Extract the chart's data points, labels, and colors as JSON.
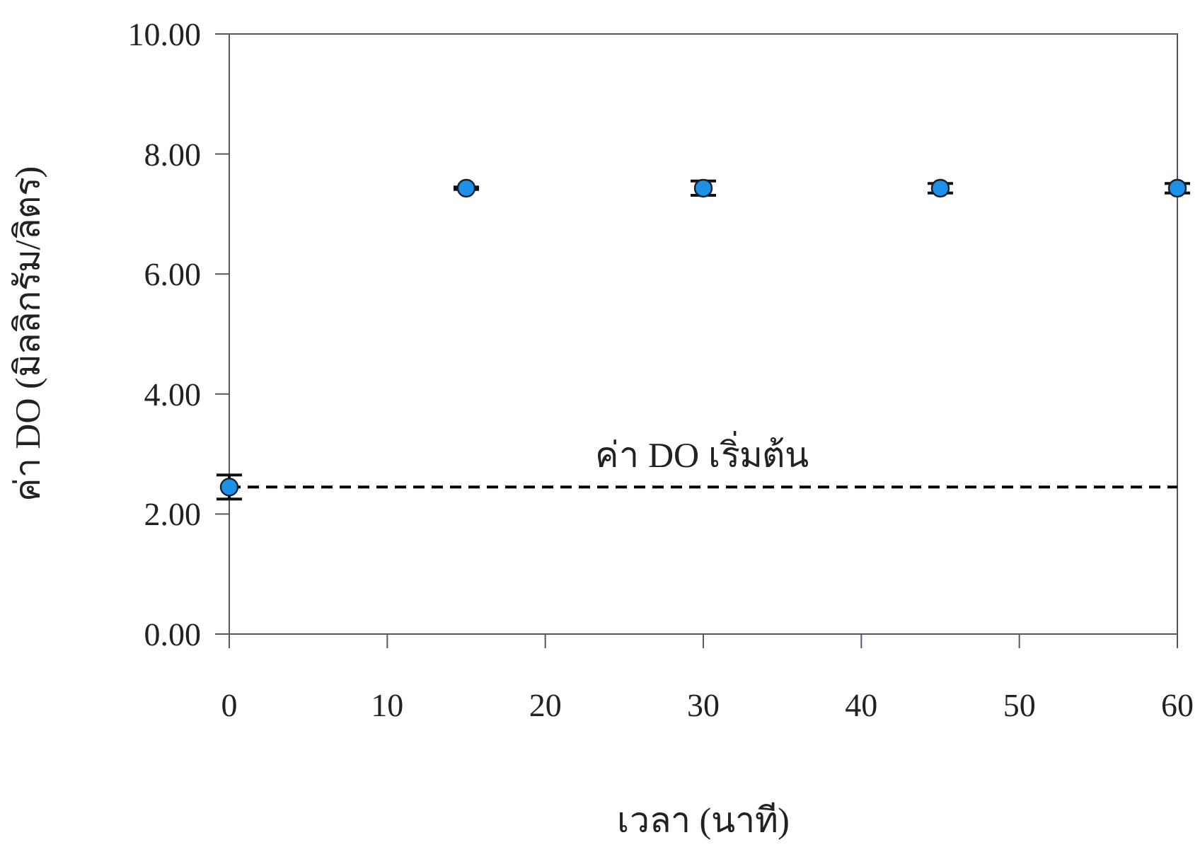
{
  "chart_data": {
    "type": "scatter",
    "xlabel": "เวลา (นาที)",
    "ylabel": "ค่า DO (มิลลิกรัม/ลิตร)",
    "x": [
      0,
      15,
      30,
      45,
      60
    ],
    "series": [
      {
        "color": "#1e90e6",
        "values": [
          2.45,
          7.43,
          7.43,
          7.43,
          7.43
        ],
        "errors": [
          0.2,
          0.02,
          0.12,
          0.08,
          0.08
        ]
      }
    ],
    "xlim": [
      0,
      60
    ],
    "xticks": [
      0,
      10,
      20,
      30,
      40,
      50,
      60
    ],
    "ylim": [
      0,
      10
    ],
    "yticks": [
      {
        "value": 0,
        "label": "0.00"
      },
      {
        "value": 2,
        "label": "2.00"
      },
      {
        "value": 4,
        "label": "4.00"
      },
      {
        "value": 6,
        "label": "6.00"
      },
      {
        "value": 8,
        "label": "8.00"
      },
      {
        "value": 10,
        "label": "10.00"
      }
    ],
    "ref_lines": [
      {
        "axis": "y",
        "value": 2.45,
        "label": "ค่า DO เริ่มต้น",
        "color": "#000000",
        "line_style": "dashed"
      }
    ],
    "marker": "circle",
    "grid": false
  }
}
